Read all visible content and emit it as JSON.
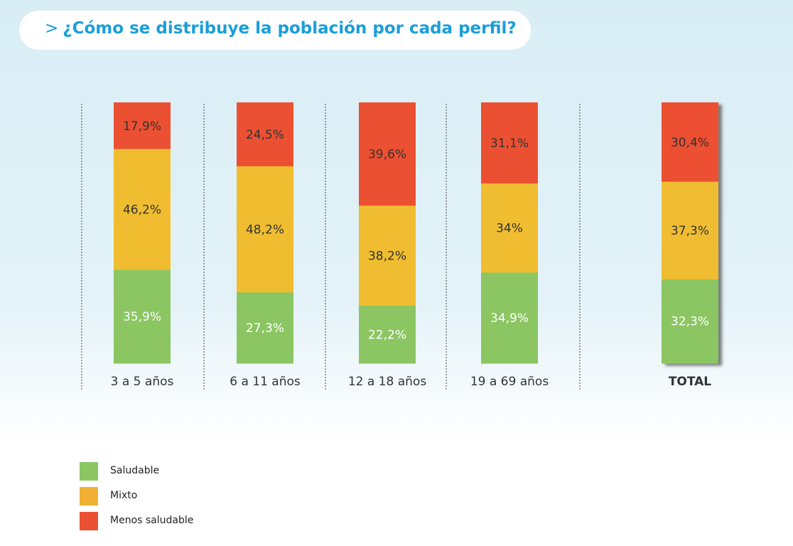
{
  "title": {
    "prefix": ">",
    "text": "¿Cómo se distribuye la población por cada perfil?"
  },
  "legend": [
    {
      "label": "Saludable",
      "color": "#8bc663"
    },
    {
      "label": "Mixto",
      "color": "#f0b034"
    },
    {
      "label": "Menos saludable",
      "color": "#ec5032"
    }
  ],
  "chart_data": {
    "type": "bar",
    "stacked": true,
    "categories": [
      "3 a 5 años",
      "6 a 11 años",
      "12 a 18 años",
      "19 a 69 años",
      "TOTAL"
    ],
    "series": [
      {
        "name": "Saludable",
        "color": "#8bc663",
        "values": [
          35.9,
          27.3,
          22.2,
          34.9,
          32.3
        ],
        "labels": [
          "35,9%",
          "27,3%",
          "22,2%",
          "34,9%",
          "32,3%"
        ]
      },
      {
        "name": "Mixto",
        "color": "#f0bd30",
        "values": [
          46.2,
          48.2,
          38.2,
          34,
          37.3
        ],
        "labels": [
          "46,2%",
          "48,2%",
          "38,2%",
          "34%",
          "37,3%"
        ]
      },
      {
        "name": "Menos saludable",
        "color": "#ec5032",
        "values": [
          17.9,
          24.5,
          39.6,
          31.1,
          30.4
        ],
        "labels": [
          "17,9%",
          "24,5%",
          "39,6%",
          "31,1%",
          "30,4%"
        ]
      }
    ],
    "ylim": [
      0,
      100
    ],
    "grid": false,
    "legend_position": "bottom-left"
  }
}
